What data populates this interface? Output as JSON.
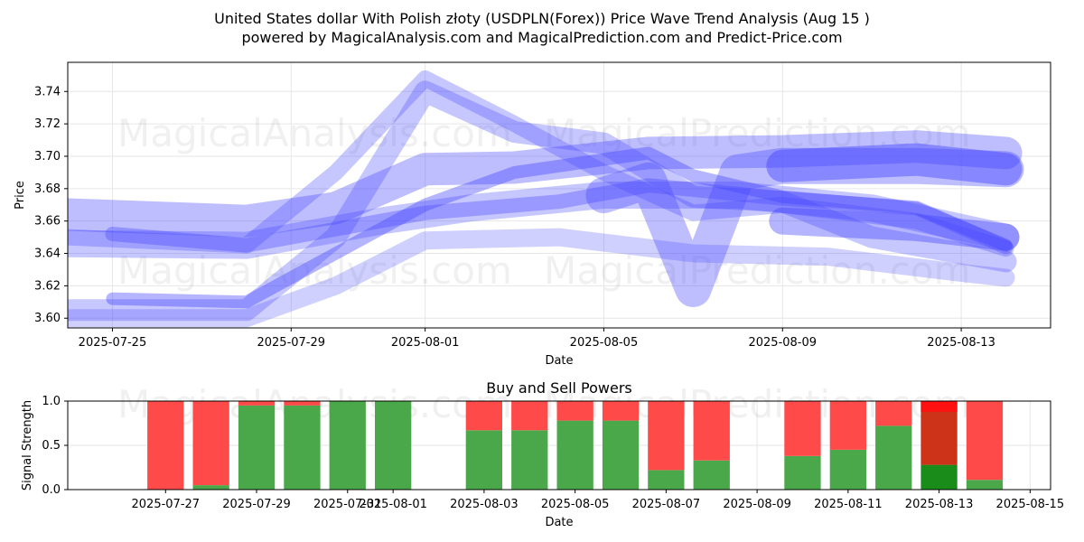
{
  "header": {
    "title": "United States dollar With Polish złoty (USDPLN(Forex)) Price Wave Trend Analysis (Aug 15 )",
    "subtitle": "powered by MagicalAnalysis.com and MagicalPrediction.com and Predict-Price.com"
  },
  "watermarks": [
    "MagicalAnalysis.com",
    "MagicalPrediction.com"
  ],
  "colors": {
    "wave": "#4444ff",
    "buy": "#4aa84a",
    "sell": "#ff4a4a",
    "buy_dark": "#1a8c1a",
    "sell_dark": "#cc3318",
    "sell_bright": "#ff1111"
  },
  "chart_data": [
    {
      "type": "line",
      "title": "",
      "xlabel": "Date",
      "ylabel": "Price",
      "xlim": [
        "2025-07-24",
        "2025-08-15"
      ],
      "ylim": [
        3.594,
        3.758
      ],
      "x_ticks": [
        "2025-07-25",
        "2025-07-29",
        "2025-08-01",
        "2025-08-05",
        "2025-08-09",
        "2025-08-13"
      ],
      "y_ticks": [
        "3.60",
        "3.62",
        "3.64",
        "3.66",
        "3.68",
        "3.70",
        "3.72",
        "3.74"
      ],
      "grid": true,
      "series": [
        {
          "width": 36,
          "opacity": 0.35,
          "points": [
            [
              "2025-07-24",
              3.664
            ],
            [
              "2025-07-28",
              3.66
            ],
            [
              "2025-07-30",
              3.668
            ],
            [
              "2025-08-01",
              3.692
            ],
            [
              "2025-08-03",
              3.693
            ],
            [
              "2025-08-06",
              3.702
            ],
            [
              "2025-08-09",
              3.703
            ],
            [
              "2025-08-12",
              3.706
            ],
            [
              "2025-08-14",
              3.702
            ]
          ]
        },
        {
          "width": 30,
          "opacity": 0.3,
          "points": [
            [
              "2025-07-24",
              3.646
            ],
            [
              "2025-07-28",
              3.645
            ],
            [
              "2025-07-31",
              3.66
            ],
            [
              "2025-08-02",
              3.668
            ],
            [
              "2025-08-05",
              3.676
            ],
            [
              "2025-08-08",
              3.676
            ],
            [
              "2025-08-11",
              3.668
            ],
            [
              "2025-08-14",
              3.65
            ]
          ]
        },
        {
          "width": 24,
          "opacity": 0.3,
          "points": [
            [
              "2025-07-24",
              3.605
            ],
            [
              "2025-07-28",
              3.605
            ],
            [
              "2025-07-30",
              3.65
            ],
            [
              "2025-08-01",
              3.74
            ],
            [
              "2025-08-03",
              3.715
            ],
            [
              "2025-08-05",
              3.708
            ],
            [
              "2025-08-07",
              3.675
            ],
            [
              "2025-08-09",
              3.672
            ],
            [
              "2025-08-11",
              3.65
            ],
            [
              "2025-08-14",
              3.635
            ]
          ]
        },
        {
          "width": 20,
          "opacity": 0.25,
          "points": [
            [
              "2025-07-24",
              3.6
            ],
            [
              "2025-07-28",
              3.6
            ],
            [
              "2025-07-30",
              3.62
            ],
            [
              "2025-08-01",
              3.648
            ],
            [
              "2025-08-04",
              3.65
            ],
            [
              "2025-08-07",
              3.64
            ],
            [
              "2025-08-10",
              3.638
            ],
            [
              "2025-08-13",
              3.628
            ],
            [
              "2025-08-14",
              3.625
            ]
          ]
        },
        {
          "width": 18,
          "opacity": 0.3,
          "points": [
            [
              "2025-07-24",
              3.65
            ],
            [
              "2025-07-28",
              3.645
            ],
            [
              "2025-07-30",
              3.69
            ],
            [
              "2025-08-01",
              3.748
            ],
            [
              "2025-08-03",
              3.72
            ],
            [
              "2025-08-05",
              3.69
            ],
            [
              "2025-08-07",
              3.665
            ],
            [
              "2025-08-09",
              3.67
            ],
            [
              "2025-08-12",
              3.66
            ],
            [
              "2025-08-14",
              3.643
            ]
          ]
        },
        {
          "width": 16,
          "opacity": 0.35,
          "points": [
            [
              "2025-07-25",
              3.652
            ],
            [
              "2025-07-28",
              3.645
            ],
            [
              "2025-08-01",
              3.665
            ],
            [
              "2025-08-04",
              3.672
            ],
            [
              "2025-08-06",
              3.682
            ],
            [
              "2025-08-09",
              3.674
            ],
            [
              "2025-08-12",
              3.668
            ],
            [
              "2025-08-14",
              3.644
            ]
          ]
        },
        {
          "width": 14,
          "opacity": 0.4,
          "points": [
            [
              "2025-07-25",
              3.612
            ],
            [
              "2025-07-28",
              3.61
            ],
            [
              "2025-07-30",
              3.64
            ],
            [
              "2025-08-01",
              3.67
            ],
            [
              "2025-08-03",
              3.69
            ],
            [
              "2025-08-05",
              3.698
            ],
            [
              "2025-08-06",
              3.702
            ],
            [
              "2025-08-07",
              3.688
            ],
            [
              "2025-08-09",
              3.675
            ],
            [
              "2025-08-12",
              3.668
            ],
            [
              "2025-08-14",
              3.645
            ]
          ]
        },
        {
          "width": 40,
          "opacity": 0.35,
          "points": [
            [
              "2025-08-05",
              3.676
            ],
            [
              "2025-08-06",
              3.685
            ],
            [
              "2025-08-07",
              3.618
            ],
            [
              "2025-08-08",
              3.69
            ],
            [
              "2025-08-09",
              3.694
            ],
            [
              "2025-08-12",
              3.694
            ],
            [
              "2025-08-14",
              3.692
            ]
          ]
        },
        {
          "width": 36,
          "opacity": 0.45,
          "points": [
            [
              "2025-08-09",
              3.694
            ],
            [
              "2025-08-12",
              3.698
            ],
            [
              "2025-08-14",
              3.692
            ]
          ]
        },
        {
          "width": 30,
          "opacity": 0.4,
          "points": [
            [
              "2025-08-09",
              3.66
            ],
            [
              "2025-08-12",
              3.656
            ],
            [
              "2025-08-14",
              3.65
            ]
          ]
        }
      ]
    },
    {
      "type": "bar",
      "stacked": true,
      "title": "Buy and Sell Powers",
      "xlabel": "Date",
      "ylabel": "Signal Strength",
      "ylim": [
        0,
        1.0
      ],
      "xlim": [
        "2025-07-25",
        "2025-08-15"
      ],
      "x_ticks": [
        "2025-07-27",
        "2025-07-29",
        "2025-07-31",
        "2025-08-01",
        "2025-08-03",
        "2025-08-05",
        "2025-08-07",
        "2025-08-09",
        "2025-08-11",
        "2025-08-13",
        "2025-08-15"
      ],
      "x_tick_labels": [
        "2025-07-27",
        "2025-07-29",
        "2025-07-31",
        "2025-08-01",
        "2025-08-03",
        "2025-08-05",
        "2025-08-07",
        "2025-08-09",
        "2025-08-11",
        "2025-08-13",
        "2025-08-15"
      ],
      "y_ticks": [
        "0.0",
        "0.5",
        "1.0"
      ],
      "grid": true,
      "categories": [
        "2025-07-27",
        "2025-07-28",
        "2025-07-29",
        "2025-07-30",
        "2025-07-31",
        "2025-08-01",
        "2025-08-03",
        "2025-08-04",
        "2025-08-05",
        "2025-08-06",
        "2025-08-07",
        "2025-08-08",
        "2025-08-10",
        "2025-08-11",
        "2025-08-12",
        "2025-08-13",
        "2025-08-14"
      ],
      "buy": [
        0.0,
        0.05,
        0.95,
        0.95,
        1.0,
        1.0,
        0.67,
        0.67,
        0.78,
        0.78,
        0.22,
        0.33,
        0.38,
        0.45,
        0.72,
        0.28,
        0.11
      ],
      "sell": [
        1.0,
        0.95,
        0.05,
        0.05,
        0.0,
        0.0,
        0.33,
        0.33,
        0.22,
        0.22,
        0.78,
        0.67,
        0.62,
        0.55,
        0.28,
        0.72,
        0.89
      ]
    }
  ]
}
